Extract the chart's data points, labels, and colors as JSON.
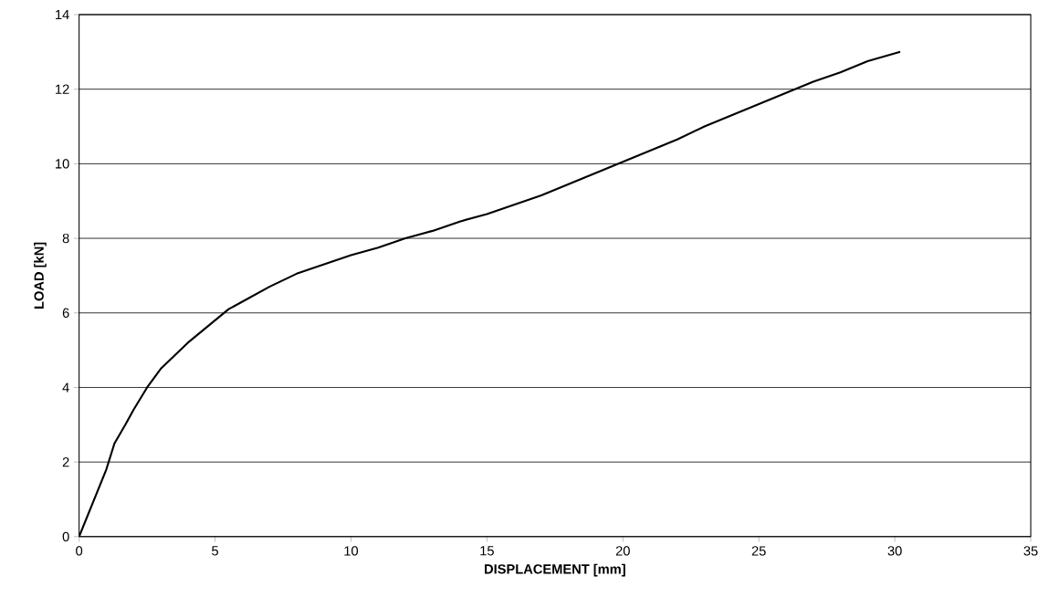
{
  "chart_data": {
    "type": "line",
    "xlabel": "DISPLACEMENT [mm]",
    "ylabel": "LOAD [kN]",
    "x": [
      0,
      0.5,
      1,
      1.3,
      1.7,
      2,
      2.5,
      3,
      3.5,
      4,
      4.5,
      5,
      5.5,
      6,
      7,
      8,
      9,
      10,
      11,
      12,
      13,
      14,
      15,
      16,
      17,
      18,
      19,
      20,
      21,
      22,
      23,
      24,
      25,
      26,
      27,
      28,
      29,
      30.2
    ],
    "series": [
      {
        "color": "#000000",
        "values": [
          0,
          0.9,
          1.8,
          2.5,
          3.0,
          3.4,
          4.0,
          4.5,
          4.85,
          5.2,
          5.5,
          5.8,
          6.1,
          6.3,
          6.7,
          7.05,
          7.3,
          7.55,
          7.75,
          8.0,
          8.2,
          8.45,
          8.65,
          8.9,
          9.15,
          9.45,
          9.75,
          10.05,
          10.35,
          10.65,
          11.0,
          11.3,
          11.6,
          11.9,
          12.2,
          12.45,
          12.75,
          13.0
        ]
      }
    ],
    "xlim": [
      0,
      35
    ],
    "xticks": [
      0,
      5,
      10,
      15,
      20,
      25,
      30,
      35
    ],
    "ylim": [
      0,
      14
    ],
    "yticks": [
      0,
      2,
      4,
      6,
      8,
      10,
      12,
      14
    ],
    "grid": "y",
    "marker": "none",
    "line_style": "solid"
  }
}
